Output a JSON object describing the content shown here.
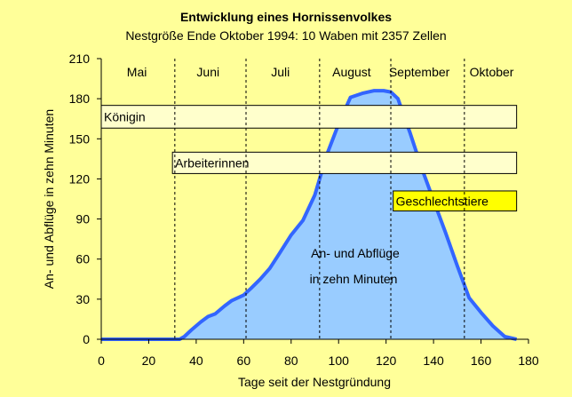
{
  "chart_data": {
    "type": "area",
    "title": "Entwicklung eines Hornissenvolkes",
    "subtitle": "Nestgröße Ende Oktober 1994: 10 Waben mit 2357 Zellen",
    "xlabel": "Tage seit der Nestgründung",
    "ylabel": "An- und Abflüge in zehn Minuten",
    "xlim": [
      0,
      180
    ],
    "ylim": [
      0,
      210
    ],
    "xticks": [
      0,
      20,
      40,
      60,
      80,
      100,
      120,
      140,
      160,
      180
    ],
    "yticks": [
      0,
      30,
      60,
      90,
      120,
      150,
      180,
      210
    ],
    "grid": false,
    "colors": {
      "area_fill": "#99ccff",
      "area_line": "#3366ff",
      "bar_light": "#ffffcc",
      "bar_accent": "#ffff00",
      "background": "#ffff99"
    },
    "x": [
      0,
      30,
      33,
      35,
      38,
      42,
      45,
      48,
      52,
      55,
      60,
      63,
      67,
      71,
      75,
      80,
      85,
      90,
      95,
      100,
      105,
      110,
      115,
      119,
      122,
      125,
      130,
      135,
      140,
      145,
      150,
      155,
      160,
      165,
      170,
      175
    ],
    "y": [
      0,
      0,
      0,
      2,
      7,
      13,
      17,
      19,
      25,
      29,
      33,
      38,
      45,
      53,
      64,
      78,
      89,
      108,
      138,
      161,
      181,
      184,
      186,
      186,
      185,
      180,
      155,
      128,
      104,
      80,
      55,
      31,
      20,
      10,
      2,
      0
    ],
    "months": [
      {
        "label": "Mai",
        "center": 15
      },
      {
        "label": "Juni",
        "center": 45
      },
      {
        "label": "Juli",
        "center": 75.5
      },
      {
        "label": "August",
        "center": 105.5
      },
      {
        "label": "September",
        "center": 134
      },
      {
        "label": "Oktober",
        "center": 164.5
      }
    ],
    "month_boundaries": [
      31,
      61,
      92,
      122,
      153
    ],
    "periods": [
      {
        "label": "Königin",
        "start": 0,
        "end": 175,
        "ylow": 158,
        "yhigh": 175,
        "color": "#ffffcc"
      },
      {
        "label": "Arbeiterinnen",
        "start": 30,
        "end": 175,
        "ylow": 124,
        "yhigh": 140,
        "color": "#ffffcc"
      },
      {
        "label": "Geschlechtstiere",
        "start": 123,
        "end": 175,
        "ylow": 96,
        "yhigh": 111,
        "color": "#ffff00"
      }
    ],
    "annotations": [
      "An- und Abflüge",
      "in zehn Minuten"
    ]
  }
}
